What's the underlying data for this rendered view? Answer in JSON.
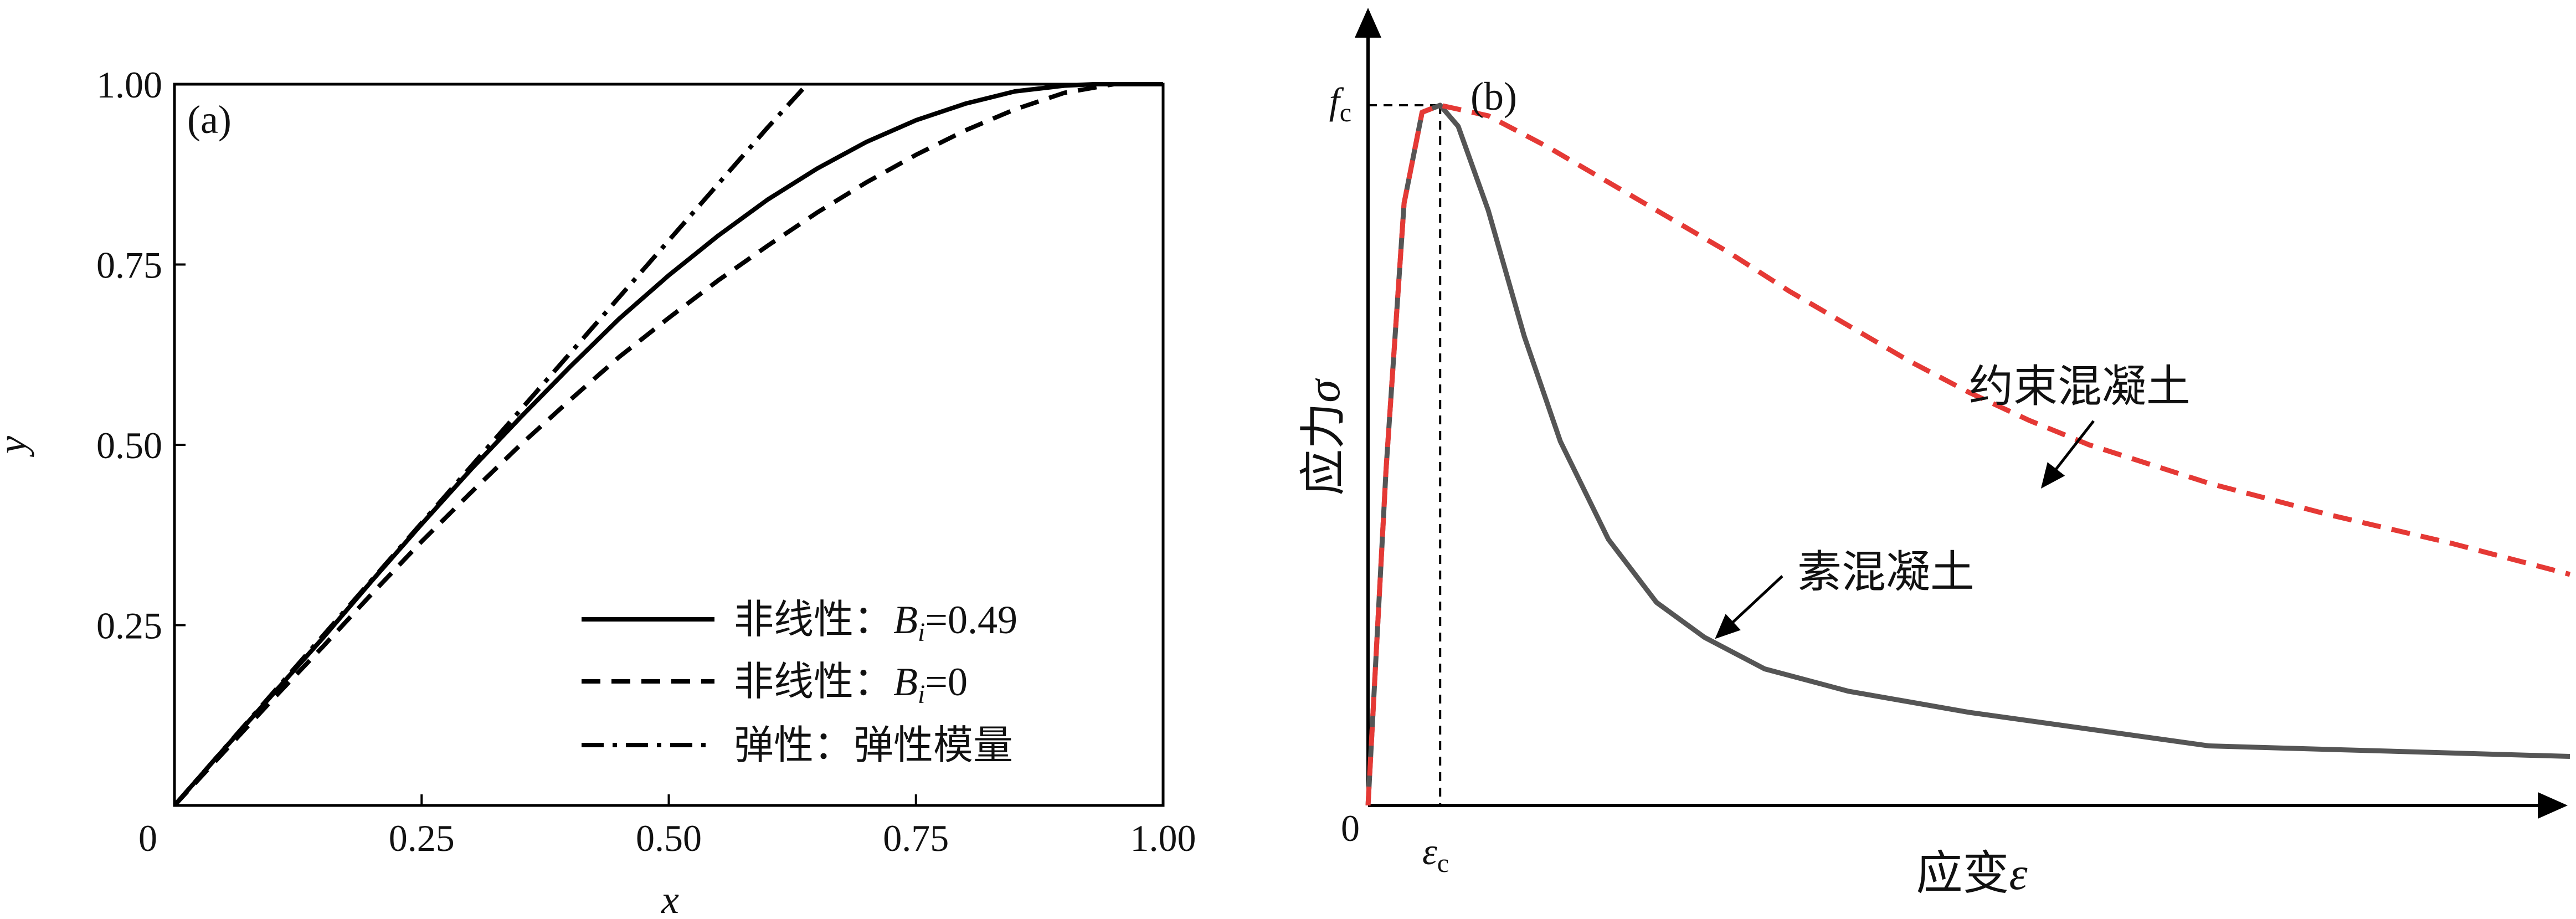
{
  "chart_data": [
    {
      "panel": "(a)",
      "type": "line",
      "xlabel": "x",
      "ylabel": "y",
      "xlim": [
        0,
        1
      ],
      "ylim": [
        0,
        1
      ],
      "x_ticks": [
        "0",
        "0.25",
        "0.50",
        "0.75",
        "1.00"
      ],
      "y_ticks": [
        "0.25",
        "0.50",
        "0.75",
        "1.00"
      ],
      "origin_label": "0",
      "grid": false,
      "legend_position": "bottom-right",
      "series": [
        {
          "name": "非线性：Bi=0.49",
          "legend_prefix": "非线性：",
          "legend_var": "B",
          "legend_sub": "i",
          "legend_val": "=0.49",
          "style": "solid",
          "color": "#000000",
          "x": [
            0,
            0.05,
            0.1,
            0.15,
            0.2,
            0.25,
            0.3,
            0.35,
            0.4,
            0.45,
            0.5,
            0.55,
            0.6,
            0.65,
            0.7,
            0.75,
            0.8,
            0.85,
            0.9,
            0.93,
            0.96,
            1.0
          ],
          "y": [
            0,
            0.078,
            0.155,
            0.232,
            0.312,
            0.39,
            0.466,
            0.538,
            0.608,
            0.675,
            0.735,
            0.79,
            0.84,
            0.883,
            0.92,
            0.95,
            0.973,
            0.99,
            0.998,
            1.0,
            1.0,
            1.0
          ]
        },
        {
          "name": "非线性：Bi=0",
          "legend_prefix": "非线性：",
          "legend_var": "B",
          "legend_sub": "i",
          "legend_val": "=0",
          "style": "dashed",
          "color": "#000000",
          "x": [
            0,
            0.05,
            0.1,
            0.15,
            0.2,
            0.25,
            0.3,
            0.35,
            0.4,
            0.45,
            0.5,
            0.55,
            0.6,
            0.65,
            0.7,
            0.75,
            0.8,
            0.85,
            0.9,
            0.95
          ],
          "y": [
            0,
            0.074,
            0.148,
            0.22,
            0.294,
            0.366,
            0.434,
            0.5,
            0.562,
            0.622,
            0.676,
            0.728,
            0.776,
            0.822,
            0.864,
            0.902,
            0.936,
            0.965,
            0.988,
            1.0
          ]
        },
        {
          "name": "弹性：弹性模量",
          "legend_prefix": "弹性：弹性模量",
          "style": "dashdot",
          "color": "#000000",
          "x": [
            0,
            0.3,
            0.6,
            0.64
          ],
          "y": [
            0,
            0.47,
            0.94,
            1.0
          ]
        }
      ]
    },
    {
      "panel": "(b)",
      "type": "line",
      "xlabel_cn": "应变",
      "xlabel_sym": "ε",
      "ylabel_cn": "应力",
      "ylabel_sym": "σ",
      "origin_label": "0",
      "peak_stress_label_main": "f",
      "peak_stress_label_sub": "c",
      "peak_strain_label_main": "ε",
      "peak_strain_label_sub": "c",
      "xlim": [
        0,
        10
      ],
      "ylim": [
        0,
        1
      ],
      "peak": {
        "x": 0.6,
        "y": 1.0
      },
      "grid": false,
      "series": [
        {
          "name": "素混凝土",
          "color": "#555555",
          "style": "solid",
          "x": [
            0,
            0.15,
            0.3,
            0.45,
            0.6,
            0.75,
            1.0,
            1.3,
            1.6,
            2.0,
            2.4,
            2.8,
            3.3,
            4.0,
            5.0,
            7.0,
            10.0
          ],
          "y": [
            0,
            0.48,
            0.86,
            0.99,
            1.0,
            0.97,
            0.85,
            0.67,
            0.52,
            0.38,
            0.29,
            0.24,
            0.195,
            0.163,
            0.133,
            0.085,
            0.07
          ]
        },
        {
          "name": "约束混凝土",
          "color": "#e53935",
          "style": "dashed",
          "x": [
            0,
            0.15,
            0.3,
            0.45,
            0.6,
            1.0,
            1.5,
            2.0,
            2.5,
            3.0,
            3.5,
            4.0,
            4.5,
            5.0,
            5.5,
            6.0,
            7.0,
            8.0,
            9.0,
            10.0
          ],
          "y": [
            0,
            0.48,
            0.86,
            0.99,
            1.0,
            0.985,
            0.94,
            0.89,
            0.84,
            0.79,
            0.735,
            0.685,
            0.635,
            0.59,
            0.55,
            0.515,
            0.46,
            0.415,
            0.375,
            0.33
          ]
        }
      ]
    }
  ]
}
